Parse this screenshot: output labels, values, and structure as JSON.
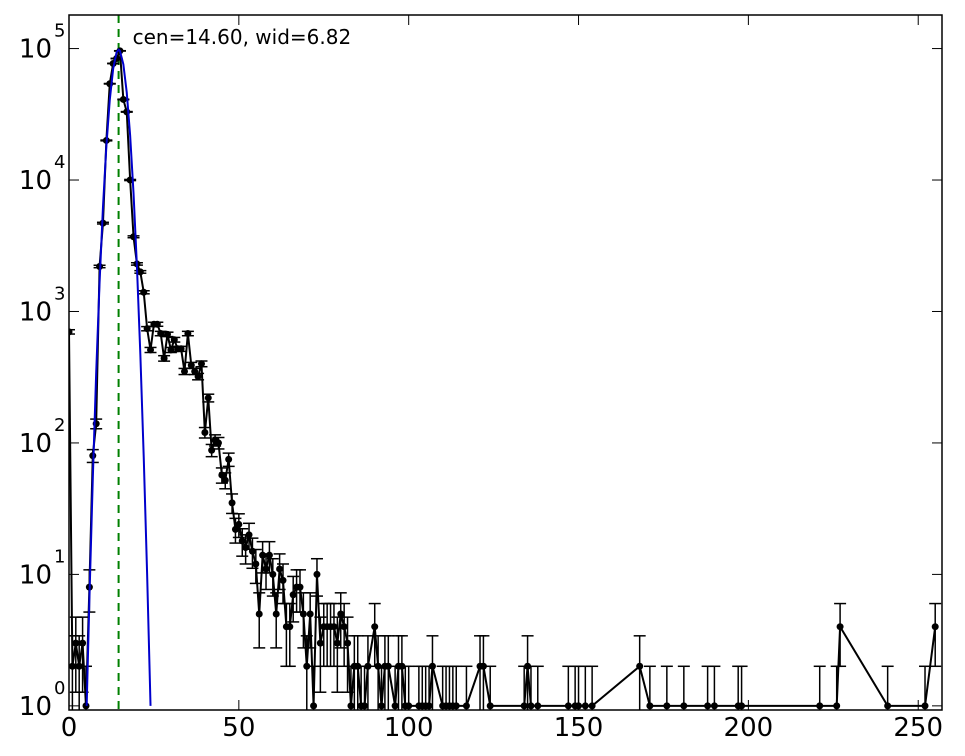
{
  "chart_data": {
    "type": "errorbar",
    "annotation": "cen=14.60, wid=6.82",
    "marker_x": 14.6,
    "marker_color": "#008000",
    "xlim": [
      0,
      257
    ],
    "xticks": [
      0,
      50,
      100,
      150,
      200,
      250
    ],
    "ylim": [
      0.93,
      180000
    ],
    "log_y": true,
    "yticks": [
      {
        "value": 1,
        "label": "10",
        "exp": "0"
      },
      {
        "value": 10,
        "label": "10",
        "exp": "1"
      },
      {
        "value": 100,
        "label": "10",
        "exp": "2"
      },
      {
        "value": 1000,
        "label": "10",
        "exp": "3"
      },
      {
        "value": 10000,
        "label": "10",
        "exp": "4"
      },
      {
        "value": 100000,
        "label": "10",
        "exp": "5"
      }
    ],
    "series": [
      {
        "color": "#000000",
        "x": [
          0,
          1,
          2,
          3,
          4,
          5,
          6,
          7,
          8,
          9,
          10,
          11,
          12,
          13,
          14,
          15,
          16,
          17,
          18,
          19,
          20,
          21,
          22,
          23,
          24,
          25,
          26,
          27,
          28,
          29,
          30,
          31,
          32,
          33,
          34,
          35,
          36,
          37,
          38,
          39,
          40,
          41,
          42,
          43,
          44,
          45,
          46,
          47,
          48,
          49,
          50,
          51,
          52,
          53,
          54,
          55,
          56,
          57,
          58,
          59,
          60,
          61,
          62,
          63,
          64,
          65,
          66,
          67,
          68,
          69,
          70,
          71,
          72,
          73,
          74,
          75,
          76,
          77,
          78,
          79,
          80,
          81,
          82,
          83,
          84,
          85,
          86,
          87,
          88,
          90,
          91,
          92,
          93,
          94,
          96,
          97,
          98,
          99,
          100,
          103,
          104,
          105,
          106,
          107,
          110,
          111,
          112,
          113,
          114,
          117,
          121,
          122,
          124,
          134,
          135,
          136,
          138,
          147,
          149,
          150,
          152,
          154,
          168,
          171,
          176,
          181,
          188,
          190,
          197,
          198,
          221,
          226,
          227,
          241,
          252,
          255
        ],
        "values": [
          700,
          2,
          3,
          2,
          3,
          1,
          8,
          80,
          140,
          2200,
          4700,
          20000,
          54000,
          77000,
          84000,
          96000,
          41000,
          33000,
          10000,
          3700,
          2300,
          2000,
          1400,
          740,
          510,
          800,
          800,
          680,
          440,
          670,
          510,
          610,
          520,
          520,
          350,
          680,
          390,
          350,
          320,
          400,
          120,
          220,
          88,
          105,
          100,
          57,
          52,
          75,
          35,
          22,
          24,
          18,
          16,
          20,
          15,
          12,
          5,
          14,
          11,
          14,
          10,
          5,
          11,
          9,
          4,
          4,
          7,
          8,
          8,
          5,
          2,
          5,
          1,
          10,
          3,
          4,
          4,
          4,
          4,
          3,
          5,
          4,
          3,
          1,
          2,
          2,
          1,
          1,
          2,
          4,
          2,
          1,
          2,
          2,
          1,
          2,
          2,
          1,
          1,
          1,
          1,
          1,
          1,
          2,
          1,
          1,
          1,
          1,
          1,
          1,
          2,
          2,
          1,
          1,
          2,
          1,
          1,
          1,
          1,
          1,
          1,
          1,
          2,
          1,
          1,
          1,
          1,
          1,
          1,
          1,
          1,
          1,
          4,
          1,
          1,
          4
        ],
        "errors": [
          26.46,
          1.41,
          1.73,
          1.41,
          1.73,
          1,
          2.83,
          8.94,
          11.83,
          46.9,
          68.56,
          141.42,
          232.38,
          277.49,
          289.83,
          309.84,
          202.48,
          181.66,
          100,
          60.83,
          47.96,
          44.72,
          37.42,
          27.2,
          22.58,
          28.28,
          28.28,
          26.08,
          20.98,
          25.88,
          22.58,
          24.7,
          22.8,
          22.8,
          18.71,
          26.08,
          19.75,
          18.71,
          17.89,
          20,
          10.95,
          14.83,
          9.38,
          10.25,
          10,
          7.55,
          7.21,
          8.66,
          5.92,
          4.69,
          4.9,
          4.24,
          4,
          4.47,
          3.87,
          3.46,
          2.24,
          3.74,
          3.32,
          3.74,
          3.16,
          2.24,
          3.32,
          3,
          2,
          2,
          2.65,
          2.83,
          2.83,
          2.24,
          1.41,
          2.24,
          1,
          3.16,
          1.73,
          2,
          2,
          2,
          2,
          1.73,
          2.24,
          2,
          1.73,
          1,
          1.41,
          1.41,
          1,
          1,
          1.41,
          2,
          1.41,
          1,
          1.41,
          1.41,
          1,
          1.41,
          1.41,
          1,
          1,
          1,
          1,
          1,
          1,
          1.41,
          1,
          1,
          1,
          1,
          1,
          1,
          1.41,
          1.41,
          1,
          1,
          1.41,
          1,
          1,
          1,
          1,
          1,
          1,
          1,
          1.41,
          1,
          1,
          1,
          1,
          1,
          1,
          1,
          1,
          1,
          2,
          1,
          1,
          2
        ]
      },
      {
        "color": "#0000cc",
        "x": [
          5.2,
          6,
          7,
          8,
          9,
          10,
          11,
          12,
          13,
          14,
          14.6,
          15,
          16,
          17,
          18,
          19,
          20,
          21,
          22,
          23,
          24
        ],
        "values": [
          1,
          6.4,
          53,
          340,
          1660,
          6230,
          18100,
          40600,
          70200,
          93500,
          98000,
          96000,
          75900,
          46300,
          21800,
          7880,
          2200,
          474,
          78,
          10,
          1
        ]
      }
    ]
  }
}
